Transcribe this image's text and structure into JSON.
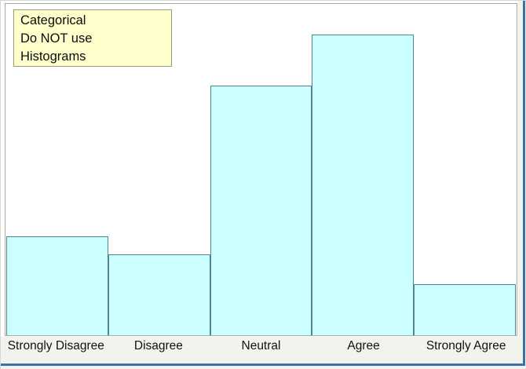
{
  "note": {
    "lines": [
      "Categorical",
      "Do NOT use",
      "Histograms"
    ],
    "line1": "Categorical",
    "line2": "Do NOT use",
    "line3": "Histograms"
  },
  "chart_data": {
    "type": "bar",
    "style": "adjacent bars, histogram-like, no gaps",
    "title": "",
    "xlabel": "",
    "ylabel": "",
    "y_axis_shown": false,
    "grid": false,
    "legend": false,
    "categories": [
      "Strongly Disagree",
      "Disagree",
      "Neutral",
      "Agree",
      "Strongly Agree"
    ],
    "values": [
      0.33,
      0.27,
      0.83,
      1.0,
      0.17
    ],
    "values_unit": "relative bar height (tallest bar = 1.0; no numeric y-axis visible)"
  },
  "colors": {
    "bar_fill": "#ccffff",
    "bar_border": "#4d878f",
    "frame_border": "#a9a9a9",
    "note_background": "#ffffcc",
    "note_border": "#9a9a7c",
    "page_background": "#f3f3ee",
    "plot_background": "#ffffff",
    "blue_edge": "#3d6fa8",
    "label_text": "#111111"
  }
}
